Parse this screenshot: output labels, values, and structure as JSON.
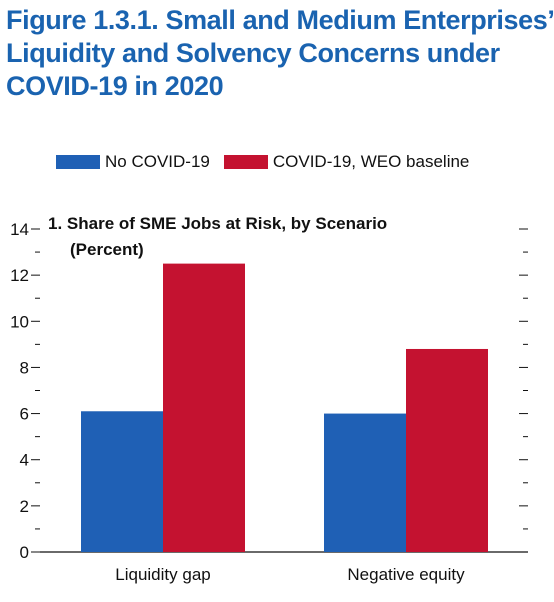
{
  "figure": {
    "title_lines": [
      "Figure 1.3.1.  Small and Medium Enterprises’",
      "Liquidity and Solvency Concerns under",
      "COVID-19 in 2020"
    ]
  },
  "colors": {
    "title": "#1a63b0",
    "no_covid": "#1f60b5",
    "covid": "#c41230"
  },
  "legend": {
    "items": [
      {
        "label": "No COVID-19",
        "color_key": "no_covid"
      },
      {
        "label": "COVID-19, WEO baseline",
        "color_key": "covid"
      }
    ]
  },
  "chart_data": {
    "type": "bar",
    "title": "1. Share of SME Jobs at Risk, by Scenario",
    "subtitle": "(Percent)",
    "categories": [
      "Liquidity gap",
      "Negative equity"
    ],
    "series": [
      {
        "name": "No COVID-19",
        "values": [
          6.1,
          6.0
        ]
      },
      {
        "name": "COVID-19, WEO baseline",
        "values": [
          12.5,
          8.8
        ]
      }
    ],
    "ylim": [
      0,
      14
    ],
    "yticks": [
      0,
      2,
      4,
      6,
      8,
      10,
      12,
      14
    ],
    "xlabel": "",
    "ylabel": "",
    "grid": false,
    "legend_position": "top"
  }
}
